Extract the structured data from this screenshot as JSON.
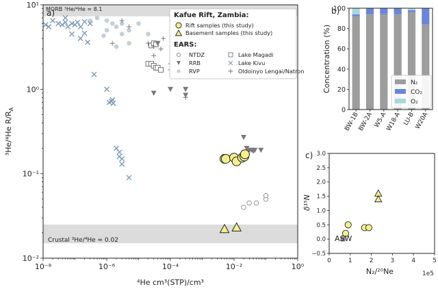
{
  "panel_a": {
    "label": "a)",
    "morb_band": "MORB ³He/⁴He ≈ 8.1",
    "crustal_band": "Crustal ³He/⁴He ≈ 0.02",
    "legend": {
      "title": "Kafue Rift, Zambia:",
      "rift": "Rift samples (this study)",
      "basement": "Basement samples (this study)",
      "ears_title": "EARS:",
      "ntdz": "NTDZ",
      "rrb": "RRB",
      "rvp": "RVP",
      "magadi": "Lake Magadi",
      "kivu": "Lake Kivu",
      "lengai": "Oldoinyo Lengai/Natron"
    }
  },
  "panel_b": {
    "label": "b)"
  },
  "panel_c": {
    "label": "c)",
    "asw": "ASW"
  },
  "colors": {
    "rift_fill": "#f3ef8e",
    "ears_blue": "#7d9bb5",
    "ears_gray": "#7a7a7a",
    "rvp": "#c4cfd9",
    "n2": "#9d9d9d",
    "co2": "#6b86d6",
    "o2": "#a8d8dc",
    "band": "#dcdcdc"
  },
  "chart_data": [
    {
      "type": "scatter",
      "xlabel": "⁴He cm³(STP)/cm³",
      "ylabel": "³He/⁴He R/R_A",
      "ylabel_main": "³He/⁴He R/R",
      "ylabel_sub": "A",
      "xscale": "log",
      "yscale": "log",
      "xlim": [
        1e-08,
        1
      ],
      "ylim": [
        0.01,
        10
      ],
      "x_ticklabels": [
        "10⁻⁸",
        "10⁻⁶",
        "10⁻⁴",
        "10⁻²",
        "10⁰"
      ],
      "y_ticklabels": [
        "10⁻²",
        "10⁻¹",
        "10⁰",
        "10¹"
      ],
      "bands": [
        {
          "name": "MORB",
          "ymin": 7.3,
          "ymax": 10
        },
        {
          "name": "Crustal",
          "ymin": 0.015,
          "ymax": 0.025
        }
      ],
      "series": [
        {
          "name": "Rift samples (this study)",
          "marker": "circle-yellow",
          "x": [
            0.005,
            0.0055,
            0.01,
            0.012,
            0.018,
            0.021,
            0.022
          ],
          "y": [
            0.15,
            0.15,
            0.155,
            0.14,
            0.155,
            0.16,
            0.17
          ]
        },
        {
          "name": "Basement samples (this study)",
          "marker": "triangle-yellow",
          "x": [
            0.005,
            0.012
          ],
          "y": [
            0.022,
            0.023
          ]
        },
        {
          "name": "NTDZ",
          "marker": "circle-open",
          "x": [
            0.02,
            0.03,
            0.05,
            0.1,
            0.1
          ],
          "y": [
            0.04,
            0.045,
            0.045,
            0.05,
            0.055
          ]
        },
        {
          "name": "RRB",
          "marker": "triangle-gray",
          "x": [
            4e-05,
            0.00015,
            0.0001,
            0.0003,
            3e-05,
            0.0003,
            0.02,
            0.025,
            0.03,
            0.035,
            0.04,
            0.045,
            0.07
          ],
          "y": [
            3.5,
            3.3,
            1.0,
            1.0,
            0.9,
            0.85,
            0.27,
            0.2,
            0.19,
            0.19,
            0.185,
            0.19,
            0.19
          ]
        },
        {
          "name": "RVP",
          "marker": "circle-light",
          "x": [
            3e-07,
            5e-07,
            1e-06,
            1.5e-06,
            2e-06,
            3e-06,
            3e-06,
            5e-06,
            1e-05,
            2e-05,
            5e-06,
            2e-06,
            1e-06,
            8e-07
          ],
          "y": [
            6.5,
            7.0,
            6.5,
            6.0,
            5.5,
            6.0,
            4.5,
            5.0,
            6.0,
            4.5,
            3.5,
            3.2,
            5.0,
            4.3
          ]
        },
        {
          "name": "Lake Magadi",
          "marker": "square-open",
          "x": [
            2.5e-05,
            3e-05,
            3.5e-05,
            2e-05,
            2.5e-05,
            3e-05,
            3.5e-05,
            4e-05,
            5e-05
          ],
          "y": [
            3.3,
            3.5,
            3.4,
            2.0,
            2.0,
            1.9,
            1.8,
            1.8,
            1.7
          ]
        },
        {
          "name": "Lake Kivu",
          "marker": "x-blue",
          "x": [
            1.2e-08,
            1.5e-08,
            2e-08,
            3e-08,
            4e-08,
            5e-08,
            6e-08,
            8e-08,
            1e-07,
            1.2e-07,
            1.5e-07,
            2e-07,
            3e-07,
            5e-08,
            8e-08,
            1.5e-07,
            2e-07,
            2.5e-07,
            4e-07,
            1e-06,
            1.5e-06,
            1.2e-06,
            1.4e-06,
            1.6e-06,
            2e-06,
            2.5e-06,
            2.5e-06,
            3e-06,
            3e-06,
            5e-06
          ],
          "y": [
            5.8,
            5.5,
            6.5,
            6.0,
            5.8,
            6.2,
            5.5,
            6.0,
            5.8,
            6.2,
            5.5,
            6.3,
            6.0,
            7.0,
            4.5,
            4.0,
            4.6,
            3.6,
            1.5,
            1.0,
            0.75,
            0.7,
            0.72,
            0.68,
            0.2,
            0.18,
            0.16,
            0.15,
            0.13,
            0.09
          ]
        },
        {
          "name": "Oldoinyo Lengai/Natron",
          "marker": "plus-gray",
          "x": [
            3e-06,
            5e-06,
            1.5e-06,
            2e-05,
            3e-05,
            5e-05,
            0.0001,
            0.0002,
            0.0005,
            0.001,
            3e-05,
            6e-05,
            0.0001,
            0.0003
          ],
          "y": [
            6.5,
            5.5,
            3.5,
            3.5,
            2.5,
            3.0,
            2.0,
            1.5,
            1.8,
            1.5,
            3.2,
            4.0,
            1.7,
            0.8
          ]
        }
      ]
    },
    {
      "type": "bar",
      "stacked": true,
      "categories": [
        "BW-1B",
        "BW-2A",
        "W5-A",
        "W18-A",
        "LU-B",
        "W20A"
      ],
      "ylabel": "Concentration (%)",
      "ylim": [
        0,
        100
      ],
      "y_ticklabels": [
        "0",
        "20",
        "40",
        "60",
        "80",
        "100"
      ],
      "series": [
        {
          "name": "N₂",
          "values": [
            92,
            94,
            94,
            94,
            96,
            84
          ]
        },
        {
          "name": "CO₂",
          "values": [
            2,
            6,
            6,
            6,
            2,
            16
          ]
        },
        {
          "name": "O₂",
          "values": [
            6,
            0,
            0,
            0,
            2,
            0
          ]
        }
      ]
    },
    {
      "type": "scatter",
      "xlabel": "N₂/²⁰Ne",
      "ylabel": "δ¹⁵N",
      "x_multiplier": "1e5",
      "xlim": [
        0,
        500000
      ],
      "ylim": [
        -0.5,
        3.0
      ],
      "x_ticklabels": [
        "0",
        "1",
        "2",
        "3",
        "4",
        "5"
      ],
      "y_ticklabels": [
        "−0.5",
        "0.0",
        "0.5",
        "1.0",
        "1.5",
        "2.0",
        "2.5",
        "3.0"
      ],
      "series": [
        {
          "name": "ASW",
          "marker": "square-gray",
          "x": [
            65000
          ],
          "y": [
            0.0
          ]
        },
        {
          "name": "Rift samples (this study)",
          "marker": "circle-yellow",
          "x": [
            78000,
            90000,
            168000,
            188000
          ],
          "y": [
            0.2,
            0.5,
            0.4,
            0.4
          ]
        },
        {
          "name": "Basement samples (this study)",
          "marker": "triangle-yellow",
          "x": [
            233000,
            233000
          ],
          "y": [
            1.6,
            1.4
          ]
        }
      ]
    }
  ]
}
